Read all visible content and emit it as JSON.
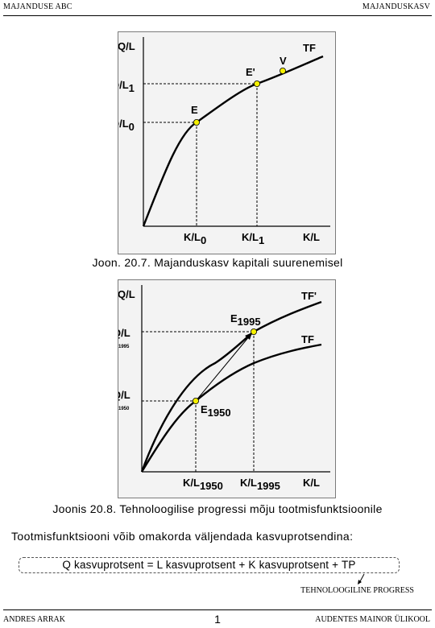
{
  "header": {
    "left": "MAJANDUSE ABC",
    "right": "MAJANDUSKASV"
  },
  "figure1": {
    "caption": "Joon. 20.7. Majanduskasv kapitali suurenemisel",
    "y_axis": "Q/L",
    "x_axis": "K/L",
    "curve_label": "TF",
    "points": [
      {
        "name": "E",
        "x_label": "K/L",
        "x_sub": "0",
        "y_label": "Q/L",
        "y_sub": "0"
      },
      {
        "name": "E'",
        "x_label": "K/L",
        "x_sub": "1",
        "y_label": "Q/L",
        "y_sub": "1"
      },
      {
        "name": "V"
      }
    ]
  },
  "figure2": {
    "caption": "Joonis 20.8. Tehnoloogilise progressi mõju tootmisfunktsioonile",
    "y_axis": "Q/L",
    "x_axis": "K/L",
    "curve_upper": "TF'",
    "curve_lower": "TF",
    "point_upper": {
      "name": "E",
      "sub": "1995",
      "x_label": "K/L",
      "x_sub": "1995",
      "y_label": "Q/L",
      "y_sub": "1995"
    },
    "point_lower": {
      "name": "E",
      "sub": "1950",
      "x_label": "K/L",
      "x_sub": "1950",
      "y_label": "Q/L",
      "y_sub": "1950"
    }
  },
  "body": {
    "text": "Tootmisfunktsiooni võib omakorda väljendada kasvuprotsendina:",
    "formula": "Q kasvuprotsent = L kasvuprotsent + K kasvuprotsent + TP",
    "tp_label": "TEHNOLOOGILINE PROGRESS"
  },
  "footer": {
    "left": "ANDRES ARRAK",
    "page": "1",
    "right": "AUDENTES MAINOR ÜLIKOOL"
  }
}
